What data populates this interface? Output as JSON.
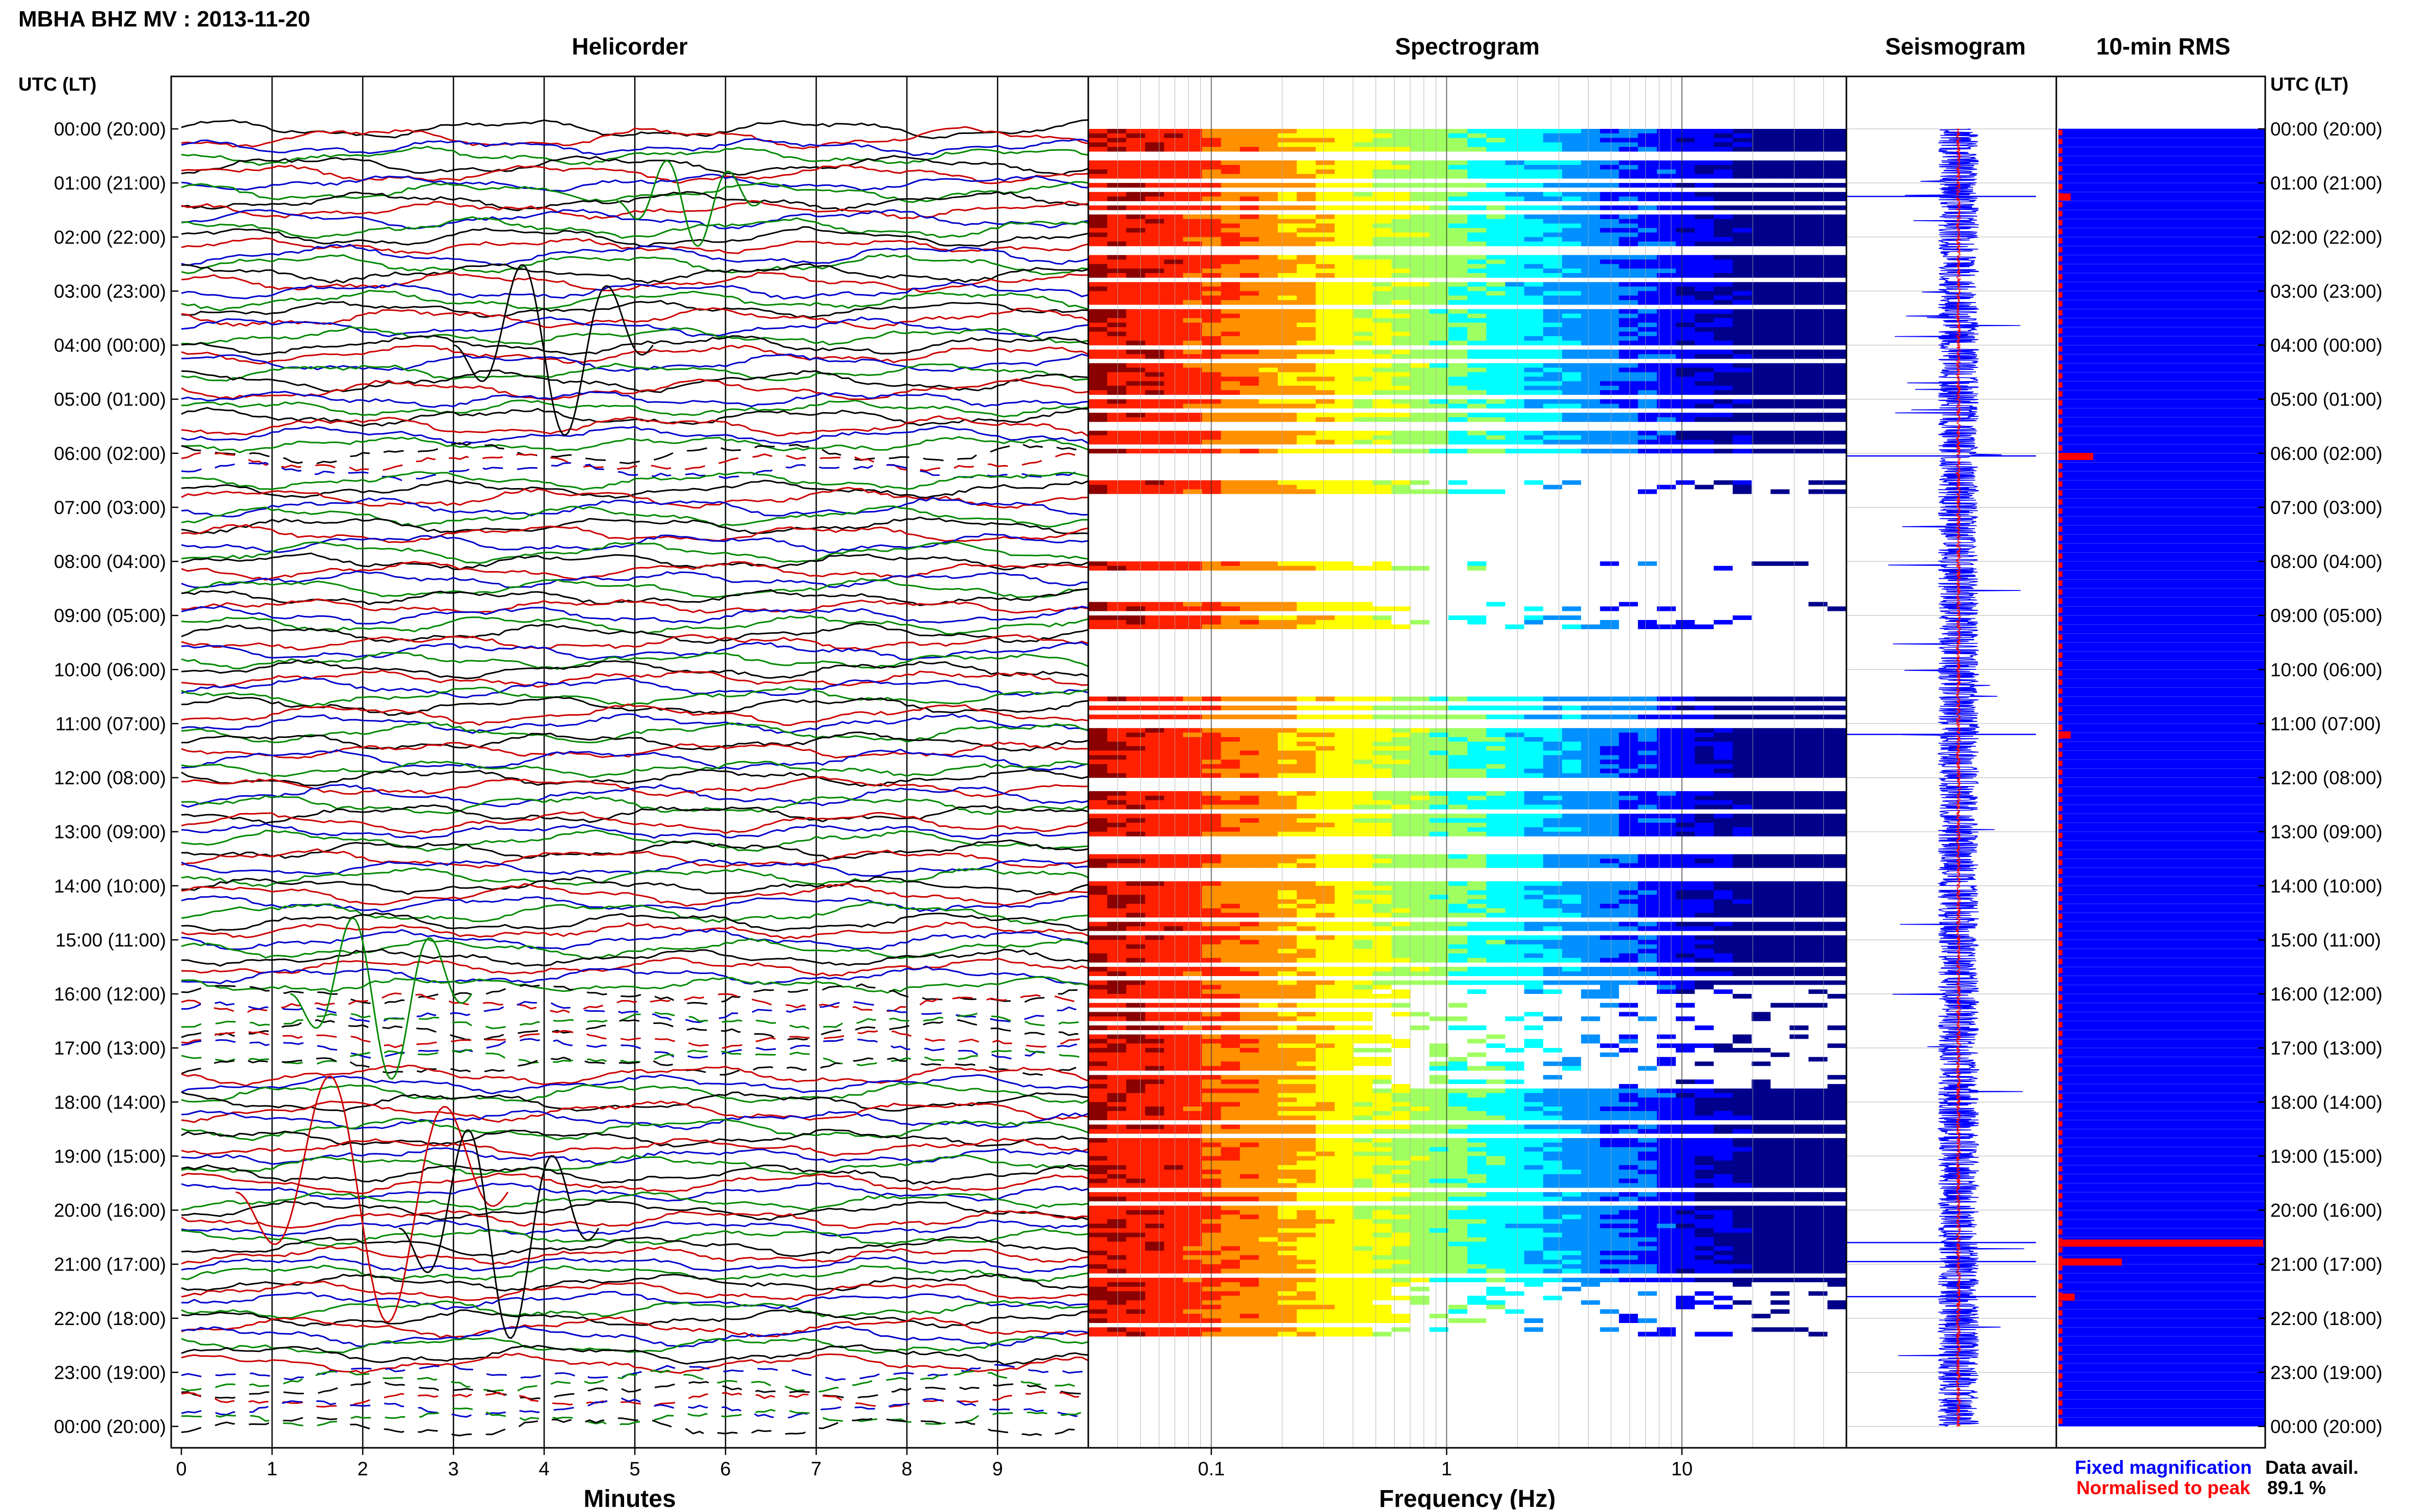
{
  "page": {
    "title": "MBHA BHZ MV : 2013-11-20"
  },
  "panels": {
    "helicorder_title": "Helicorder",
    "spectrogram_title": "Spectrogram",
    "seismogram_title": "Seismogram",
    "rms_title": "10-min RMS"
  },
  "time_axis": {
    "header_left": "UTC (LT)",
    "header_right": "UTC (LT)",
    "labels": [
      "00:00 (20:00)",
      "01:00 (21:00)",
      "02:00 (22:00)",
      "03:00 (23:00)",
      "04:00 (00:00)",
      "05:00 (01:00)",
      "06:00 (02:00)",
      "07:00 (03:00)",
      "08:00 (04:00)",
      "09:00 (05:00)",
      "10:00 (06:00)",
      "11:00 (07:00)",
      "12:00 (08:00)",
      "13:00 (09:00)",
      "14:00 (10:00)",
      "15:00 (11:00)",
      "16:00 (12:00)",
      "17:00 (13:00)",
      "18:00 (14:00)",
      "19:00 (15:00)",
      "20:00 (16:00)",
      "21:00 (17:00)",
      "22:00 (18:00)",
      "23:00 (19:00)",
      "00:00 (20:00)"
    ]
  },
  "footer": {
    "legend_fixed": "Fixed magnification",
    "legend_normalised": "Normalised to peak",
    "data_avail_label": "Data avail.",
    "data_avail_value": "89.1 %"
  },
  "colors": {
    "fixed": "#0000ff",
    "normalised": "#ff0000",
    "trace_cycle": [
      "#000000",
      "#cc0000",
      "#0000cc",
      "#008800"
    ],
    "rms_fill": "#0000ff"
  },
  "chart_data": [
    {
      "type": "line",
      "name": "helicorder",
      "title": "Helicorder",
      "xlabel": "Minutes",
      "x_ticks": [
        0,
        1,
        2,
        3,
        4,
        5,
        6,
        7,
        8,
        9
      ],
      "xlim": [
        0,
        10
      ],
      "rows": 144,
      "row_minutes": 10,
      "ylim_hours": [
        0,
        24
      ]
    },
    {
      "type": "heatmap",
      "name": "spectrogram",
      "title": "Spectrogram",
      "xlabel": "Frequency (Hz)",
      "x_scale": "log",
      "xlim": [
        0.03,
        50
      ],
      "x_ticks": [
        0.1,
        1,
        10
      ],
      "x_tick_labels": [
        "0.1",
        "1",
        "10"
      ],
      "ylim_hours": [
        0,
        24
      ],
      "data_present_ranges_hours": [
        [
          0,
          6
        ],
        [
          6.5,
          6.7
        ],
        [
          8,
          8.1
        ],
        [
          8.7,
          9.2
        ],
        [
          10.5,
          17.7
        ],
        [
          17.7,
          21.3
        ],
        [
          21.3,
          22.3
        ]
      ],
      "colormap": [
        "#8b0000",
        "#ff2000",
        "#ff9000",
        "#ffff00",
        "#a0ff60",
        "#00ffff",
        "#0090ff",
        "#0000ff",
        "#00008b"
      ]
    },
    {
      "type": "line",
      "name": "seismogram",
      "title": "Seismogram",
      "series": [
        {
          "name": "Fixed magnification",
          "color": "#0000ff"
        },
        {
          "name": "Normalised to peak",
          "color": "#ff0000"
        }
      ],
      "ylim_hours": [
        0,
        24
      ]
    },
    {
      "type": "bar",
      "name": "rms",
      "title": "10-min RMS",
      "ylim_hours": [
        0,
        24
      ],
      "baseline_level": 0.02,
      "spikes": [
        {
          "hour": 1.25,
          "level": 0.06
        },
        {
          "hour": 6.05,
          "level": 0.17
        },
        {
          "hour": 11.2,
          "level": 0.06
        },
        {
          "hour": 20.6,
          "level": 1.0
        },
        {
          "hour": 20.95,
          "level": 0.31
        },
        {
          "hour": 21.6,
          "level": 0.08
        }
      ]
    }
  ]
}
